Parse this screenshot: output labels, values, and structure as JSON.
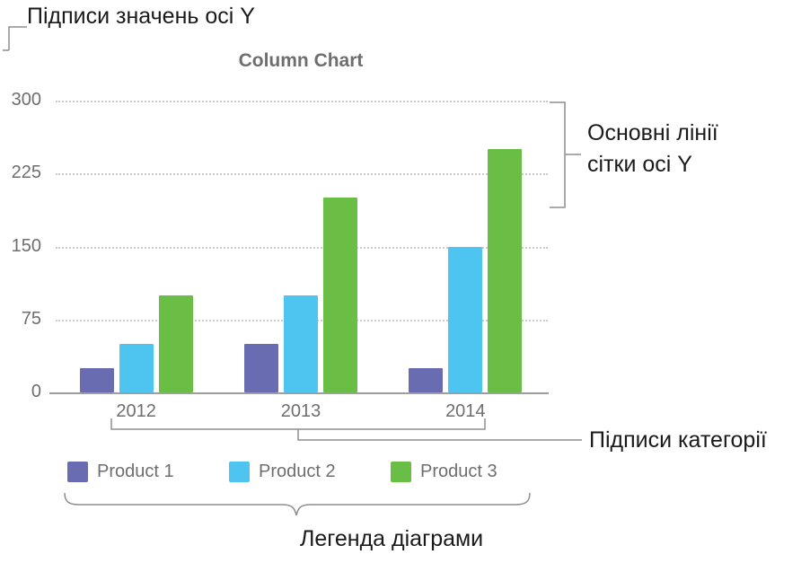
{
  "annotations": {
    "y_value_labels": "Підписи значень осі Y",
    "gridlines": [
      "Основні лінії",
      "сітки осі Y"
    ],
    "category_labels": "Підписи категорії",
    "legend": "Легенда діаграми"
  },
  "chart_data": {
    "type": "bar",
    "title": "Column Chart",
    "categories": [
      "2012",
      "2013",
      "2014"
    ],
    "series": [
      {
        "name": "Product 1",
        "color": "#6a6cb2",
        "values": [
          25,
          50,
          25
        ]
      },
      {
        "name": "Product 2",
        "color": "#4ec5f1",
        "values": [
          50,
          100,
          150
        ]
      },
      {
        "name": "Product 3",
        "color": "#6abe45",
        "values": [
          100,
          200,
          250
        ]
      }
    ],
    "y_ticks": [
      0,
      75,
      150,
      225,
      300
    ],
    "ylim": [
      0,
      300
    ],
    "grid": "horizontal dotted",
    "legend_position": "bottom",
    "axis_text_color": "#6e6e6e"
  }
}
